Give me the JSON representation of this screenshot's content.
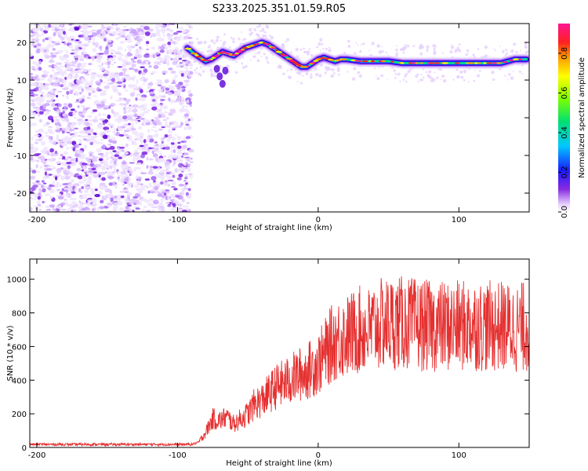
{
  "figure_title": "S233.2025.351.01.59.R05",
  "chart_data": [
    {
      "type": "heatmap",
      "title": "S233.2025.351.01.59.R05",
      "xlabel": "Height of straight line (km)",
      "ylabel": "Frequency (Hz)",
      "xlim": [
        -205,
        150
      ],
      "ylim": [
        -25,
        25
      ],
      "xticks": [
        -200,
        -100,
        0,
        100
      ],
      "yticks": [
        -20,
        -10,
        0,
        10,
        20
      ],
      "noise_region_x": [
        -205,
        -90
      ],
      "ridge": {
        "x": [
          -93,
          -88,
          -84,
          -80,
          -76,
          -72,
          -68,
          -64,
          -60,
          -56,
          -52,
          -48,
          -44,
          -40,
          -36,
          -32,
          -28,
          -24,
          -20,
          -16,
          -12,
          -8,
          -4,
          0,
          4,
          8,
          12,
          16,
          20,
          30,
          40,
          50,
          60,
          70,
          80,
          90,
          100,
          110,
          120,
          130,
          140,
          148
        ],
        "y": [
          18.5,
          17.0,
          16.0,
          15.0,
          15.5,
          16.5,
          17.5,
          17.0,
          16.5,
          17.5,
          18.5,
          19.0,
          19.5,
          20.0,
          19.5,
          18.5,
          17.5,
          16.5,
          15.5,
          14.5,
          13.5,
          13.5,
          14.5,
          15.5,
          16.0,
          15.5,
          15.0,
          15.5,
          15.5,
          15.0,
          15.0,
          15.0,
          14.5,
          14.5,
          14.5,
          14.5,
          14.5,
          14.5,
          14.5,
          14.5,
          15.5,
          15.5
        ]
      },
      "colorbar": {
        "label": "Normalized spectral amplitude",
        "range": [
          0.0,
          0.95
        ],
        "ticks": [
          0.0,
          0.2,
          0.4,
          0.6,
          0.8
        ],
        "tick_labels": [
          "0.0",
          "0.2",
          "0.4",
          "0.6",
          "0.8"
        ]
      }
    },
    {
      "type": "line",
      "xlabel": "Height of straight line (km)",
      "ylabel": "SNR (10 * v/v)",
      "xlim": [
        -205,
        150
      ],
      "ylim": [
        0,
        1120
      ],
      "xticks": [
        -200,
        -100,
        0,
        100
      ],
      "yticks": [
        0,
        200,
        400,
        600,
        800,
        1000
      ],
      "color": "#e53030",
      "envelope": {
        "x": [
          -205,
          -90,
          -85,
          -80,
          -75,
          -70,
          -65,
          -60,
          -55,
          -50,
          -45,
          -40,
          -35,
          -30,
          -25,
          -20,
          -15,
          -10,
          -5,
          0,
          5,
          10,
          15,
          20,
          25,
          30,
          35,
          40,
          50,
          60,
          70,
          80,
          90,
          100,
          110,
          120,
          130,
          140,
          150
        ],
        "y": [
          18,
          18,
          30,
          90,
          170,
          160,
          180,
          140,
          170,
          200,
          260,
          280,
          320,
          360,
          380,
          400,
          430,
          440,
          470,
          500,
          560,
          620,
          650,
          660,
          680,
          700,
          690,
          720,
          740,
          740,
          730,
          720,
          720,
          720,
          730,
          720,
          720,
          710,
          720
        ]
      }
    }
  ]
}
